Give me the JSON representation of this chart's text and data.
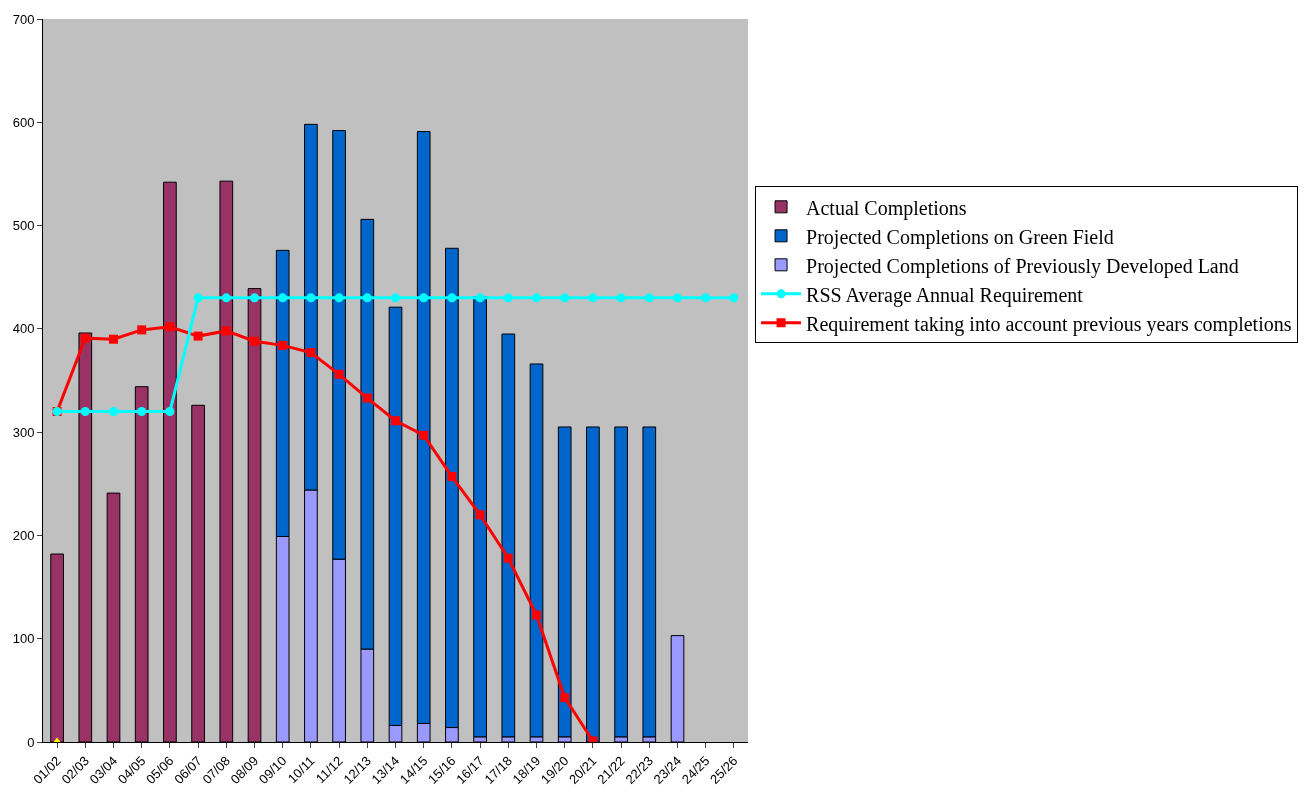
{
  "chart_data": {
    "type": "bar",
    "stacked": true,
    "categories": [
      "01/02",
      "02/03",
      "03/04",
      "04/05",
      "05/06",
      "06/07",
      "07/08",
      "08/09",
      "09/10",
      "10/11",
      "11/12",
      "12/13",
      "13/14",
      "14/15",
      "15/16",
      "16/17",
      "17/18",
      "18/19",
      "19/20",
      "20/21",
      "21/22",
      "22/23",
      "23/24",
      "24/25",
      "25/26"
    ],
    "series": [
      {
        "name": "Projected Completions of Previously Developed Land",
        "color": "#9999ff",
        "values": [
          null,
          null,
          null,
          null,
          null,
          null,
          null,
          null,
          199,
          244,
          177,
          90,
          16,
          18,
          14,
          5,
          5,
          5,
          5,
          null,
          5,
          5,
          103,
          null,
          null
        ]
      },
      {
        "name": "Projected Completions on Green Field",
        "color": "#0066cc",
        "values": [
          null,
          null,
          null,
          null,
          null,
          null,
          null,
          null,
          277,
          354,
          415,
          416,
          405,
          573,
          464,
          426,
          390,
          361,
          300,
          305,
          300,
          300,
          null,
          null,
          null
        ]
      },
      {
        "name": "Actual Completions",
        "color": "#993366",
        "values": [
          182,
          396,
          241,
          344,
          542,
          326,
          543,
          439,
          null,
          null,
          null,
          null,
          null,
          null,
          null,
          null,
          null,
          null,
          null,
          null,
          null,
          null,
          null,
          null,
          null
        ]
      },
      {
        "name": "Requirement taking into account previous years completions",
        "type": "line",
        "marker": "square",
        "color": "#ff0000",
        "values": [
          320,
          391,
          390,
          399,
          402,
          393,
          398,
          388,
          384,
          377,
          356,
          333,
          311,
          297,
          257,
          220,
          178,
          123,
          43,
          1,
          null,
          null,
          null,
          null,
          null
        ]
      },
      {
        "name": "RSS Average Annual Requirement",
        "type": "line",
        "marker": "circle",
        "color": "#00ffff",
        "values": [
          320,
          320,
          320,
          320,
          320,
          430,
          430,
          430,
          430,
          430,
          430,
          430,
          430,
          430,
          430,
          430,
          430,
          430,
          430,
          430,
          430,
          430,
          430,
          430,
          430
        ]
      },
      {
        "type": "scatter",
        "marker": "triangle",
        "color": "#ffff00",
        "values": [
          0,
          null,
          null,
          null,
          null,
          null,
          null,
          null,
          null,
          null,
          null,
          null,
          null,
          null,
          null,
          null,
          null,
          null,
          null,
          null,
          null,
          null,
          null,
          null,
          null
        ]
      }
    ],
    "ylim": [
      0,
      700
    ],
    "yticks": [
      0,
      100,
      200,
      300,
      400,
      500,
      600,
      700
    ],
    "grid": false,
    "legend": "right"
  }
}
